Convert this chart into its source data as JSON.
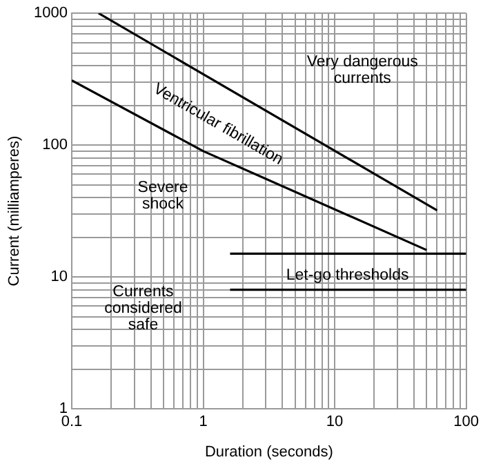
{
  "chart_data": {
    "type": "line",
    "xlabel": "Duration (seconds)",
    "ylabel": "Current (milliamperes)",
    "log": "xy",
    "grid": true,
    "legend": false,
    "marker": "none",
    "line_style": "solid",
    "xlim": [
      0.1,
      100
    ],
    "ylim": [
      1,
      1000
    ],
    "xticks": [
      0.1,
      {
        "value": 0.2,
        "label": null
      },
      {
        "value": 0.3,
        "label": null
      },
      {
        "value": 0.4,
        "label": null
      },
      {
        "value": 0.5,
        "label": null
      },
      {
        "value": 0.6,
        "label": null
      },
      {
        "value": 0.7,
        "label": null
      },
      {
        "value": 0.8,
        "label": null
      },
      {
        "value": 0.9,
        "label": null
      },
      1,
      {
        "value": 2,
        "label": null
      },
      {
        "value": 3,
        "label": null
      },
      {
        "value": 4,
        "label": null
      },
      {
        "value": 5,
        "label": null
      },
      {
        "value": 6,
        "label": null
      },
      {
        "value": 7,
        "label": null
      },
      {
        "value": 8,
        "label": null
      },
      {
        "value": 9,
        "label": null
      },
      10,
      {
        "value": 20,
        "label": null
      },
      {
        "value": 30,
        "label": null
      },
      {
        "value": 40,
        "label": null
      },
      {
        "value": 50,
        "label": null
      },
      {
        "value": 60,
        "label": null
      },
      {
        "value": 70,
        "label": null
      },
      {
        "value": 80,
        "label": null
      },
      {
        "value": 90,
        "label": null
      },
      100
    ],
    "yticks": [
      1,
      {
        "value": 2,
        "label": null
      },
      {
        "value": 3,
        "label": null
      },
      {
        "value": 4,
        "label": null
      },
      {
        "value": 5,
        "label": null
      },
      {
        "value": 6,
        "label": null
      },
      {
        "value": 7,
        "label": null
      },
      {
        "value": 8,
        "label": null
      },
      {
        "value": 9,
        "label": null
      },
      10,
      {
        "value": 20,
        "label": null
      },
      {
        "value": 30,
        "label": null
      },
      {
        "value": 40,
        "label": null
      },
      {
        "value": 50,
        "label": null
      },
      {
        "value": 60,
        "label": null
      },
      {
        "value": 70,
        "label": null
      },
      {
        "value": 80,
        "label": null
      },
      {
        "value": 90,
        "label": null
      },
      100,
      {
        "value": 200,
        "label": null
      },
      {
        "value": 300,
        "label": null
      },
      {
        "value": 400,
        "label": null
      },
      {
        "value": 500,
        "label": null
      },
      {
        "value": 600,
        "label": null
      },
      {
        "value": 700,
        "label": null
      },
      {
        "value": 800,
        "label": null
      },
      {
        "value": 900,
        "label": null
      },
      1000
    ],
    "series": [
      {
        "color": "#000000",
        "x": [
          0.16,
          60
        ],
        "values": [
          1000,
          32
        ]
      },
      {
        "color": "#000000",
        "x": [
          0.1,
          1,
          50
        ],
        "values": [
          310,
          90,
          16
        ]
      },
      {
        "color": "#000000",
        "x": [
          1.6,
          100
        ],
        "values": [
          15,
          15
        ]
      },
      {
        "color": "#000000",
        "x": [
          1.6,
          100
        ],
        "values": [
          8,
          8
        ]
      }
    ],
    "annotations": [
      "Very dangerous currents",
      "Ventricular fibrillation",
      "Severe shock",
      "Currents considered safe",
      "Let-go thresholds"
    ]
  }
}
